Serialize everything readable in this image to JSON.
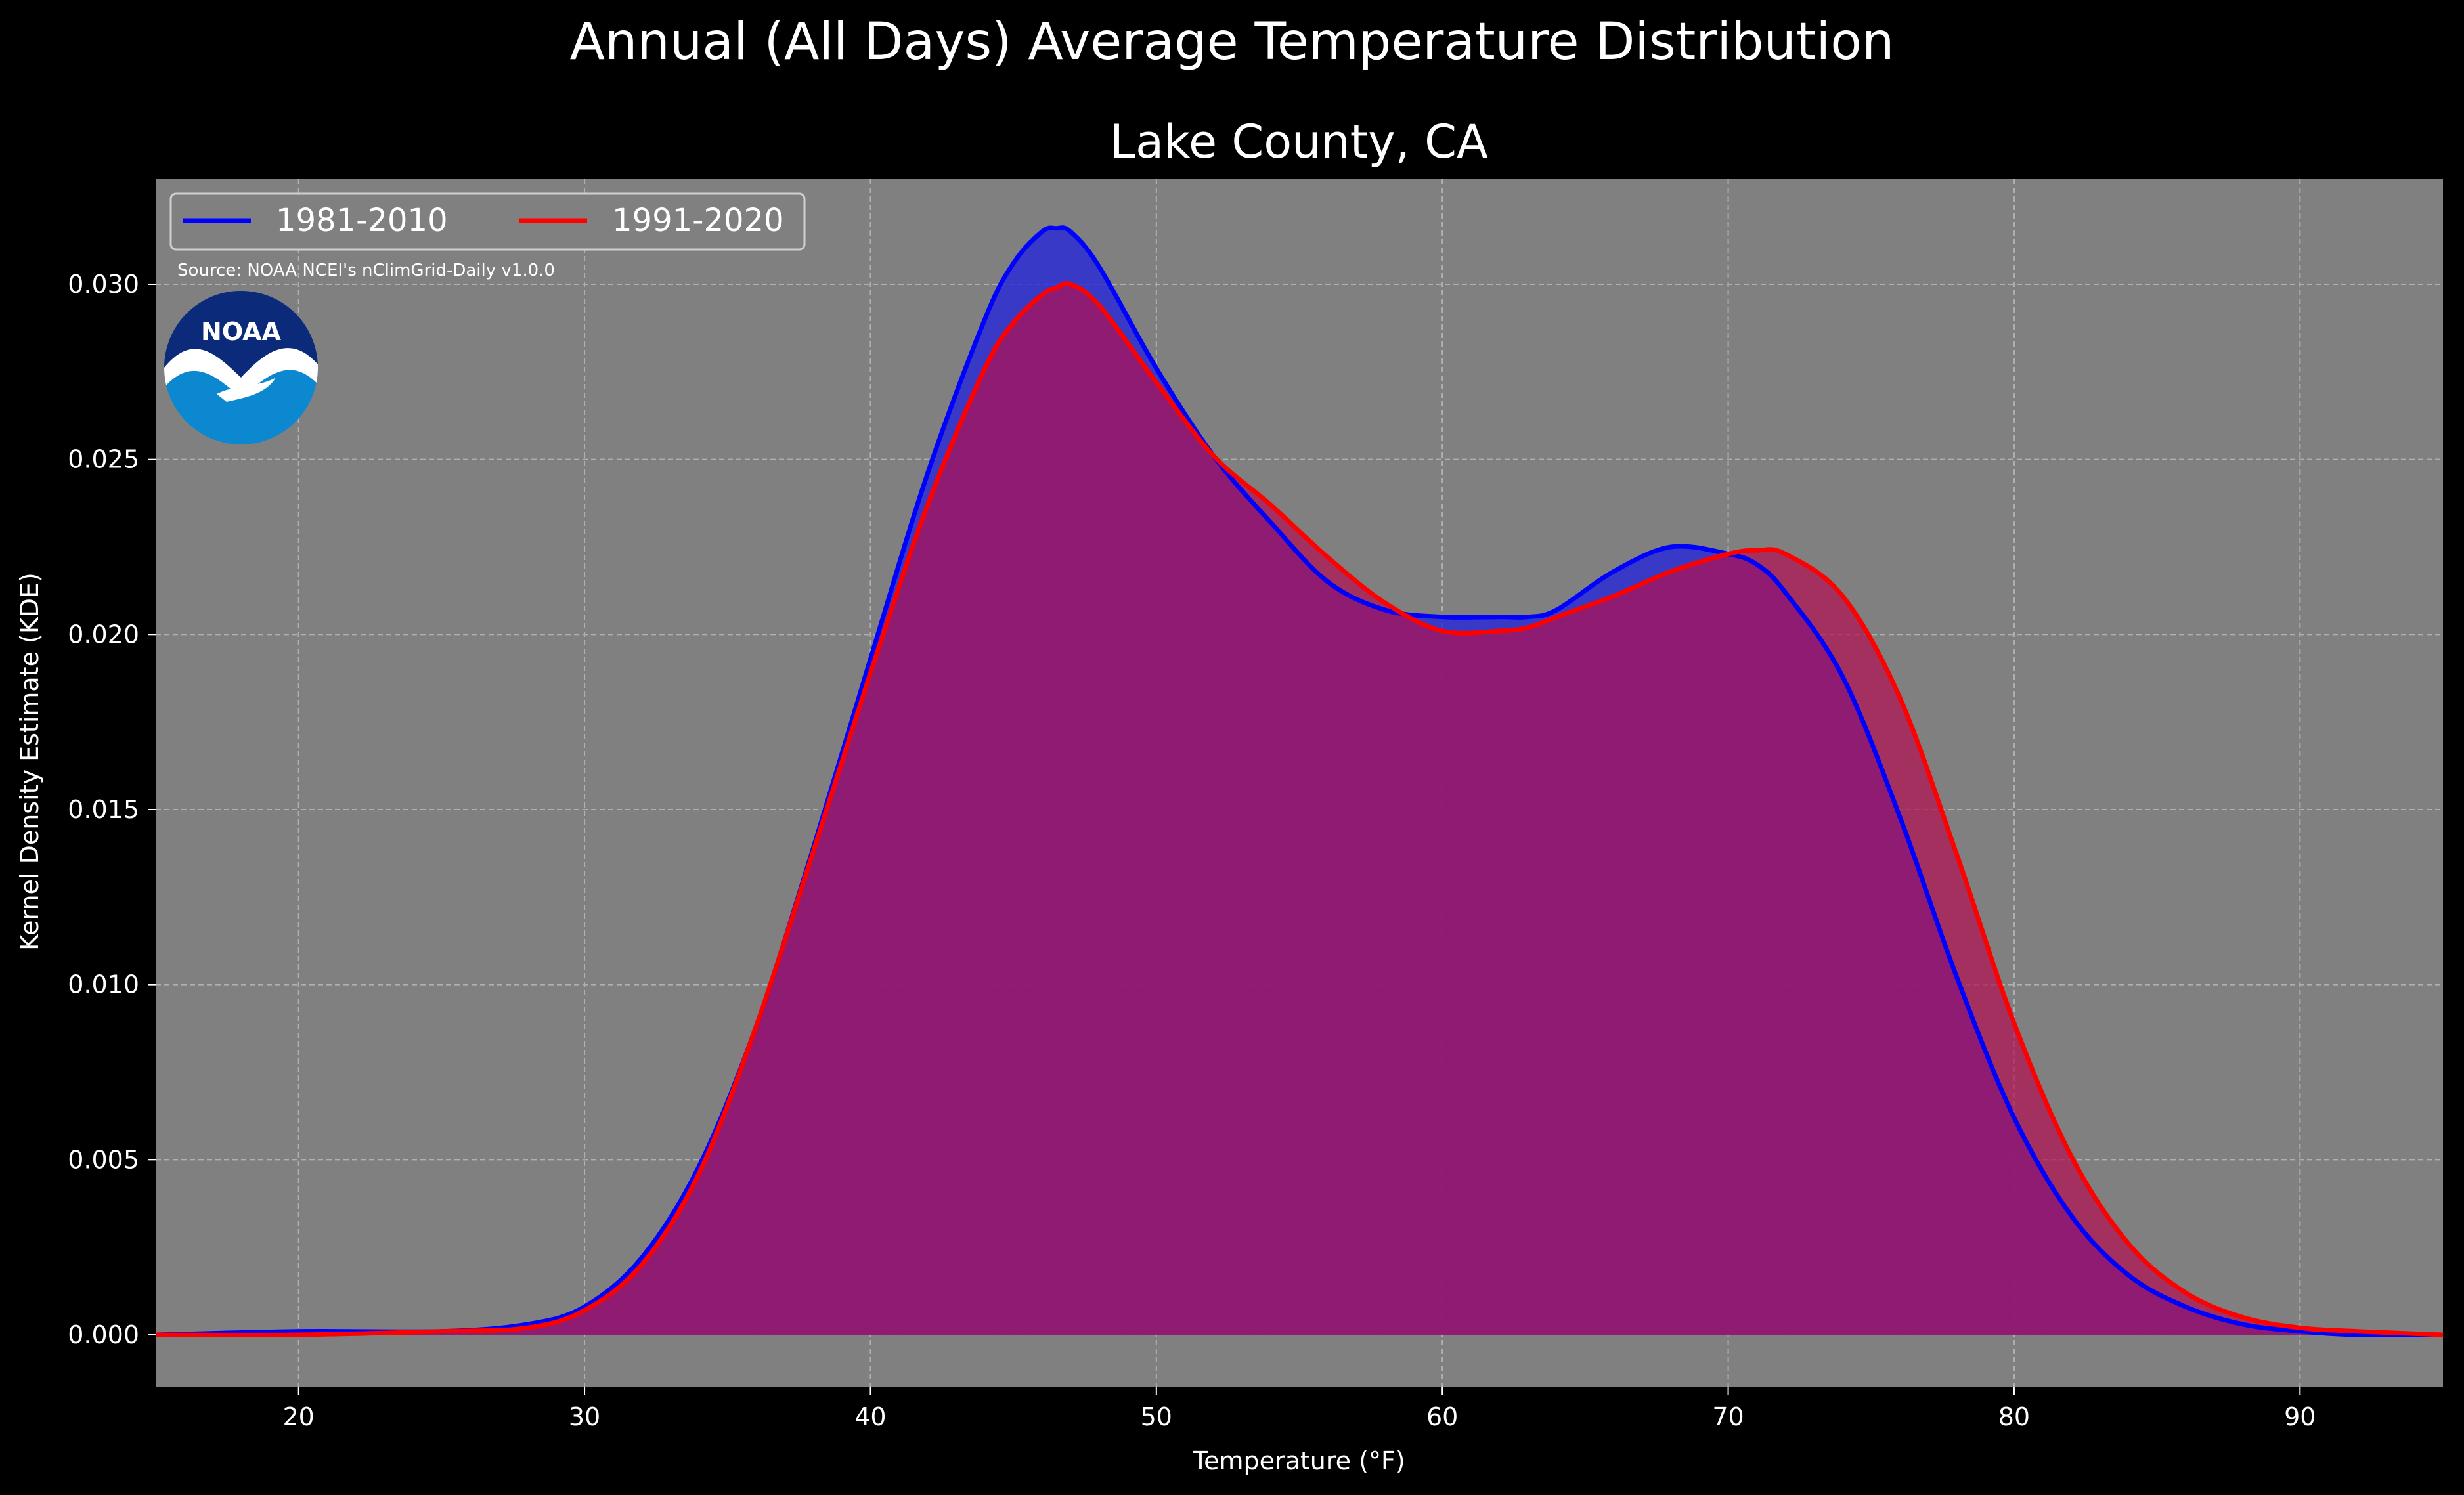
{
  "chart_data": {
    "type": "area",
    "suptitle": "Annual (All Days) Average Temperature Distribution",
    "title": "Lake County, CA",
    "xlabel": "Temperature (°F)",
    "ylabel": "Kernel Density Estimate (KDE)",
    "xlim": [
      15,
      95
    ],
    "ylim": [
      -0.0015,
      0.033
    ],
    "xticks": [
      "20",
      "30",
      "40",
      "50",
      "60",
      "70",
      "80",
      "90"
    ],
    "yticks": [
      "0.000",
      "0.005",
      "0.010",
      "0.015",
      "0.020",
      "0.025",
      "0.030"
    ],
    "grid": true,
    "legend_position": "top-left",
    "source_note": "Source: NOAA NCEI's nClimGrid-Daily v1.0.0",
    "logo_text": "NOAA",
    "x": [
      15,
      20,
      25,
      28,
      30,
      32,
      34,
      36,
      38,
      40,
      42,
      44,
      45,
      46,
      46.5,
      47,
      48,
      50,
      52,
      54,
      56,
      58,
      60,
      62,
      63,
      64,
      66,
      68,
      70,
      71,
      72,
      74,
      76,
      78,
      80,
      82,
      84,
      86,
      88,
      90,
      92,
      95
    ],
    "series": [
      {
        "name": "1981-2010",
        "color": "#0000ff",
        "fill": "#3333cc",
        "values": [
          0.0,
          0.0001,
          0.0001,
          0.0003,
          0.0008,
          0.0022,
          0.0048,
          0.0088,
          0.0139,
          0.0193,
          0.0246,
          0.029,
          0.0306,
          0.0315,
          0.0316,
          0.0315,
          0.0305,
          0.0276,
          0.0251,
          0.0232,
          0.0215,
          0.0207,
          0.0205,
          0.0205,
          0.0205,
          0.0207,
          0.0218,
          0.0225,
          0.0223,
          0.022,
          0.0212,
          0.0188,
          0.0148,
          0.0102,
          0.0062,
          0.0034,
          0.0017,
          0.0008,
          0.0003,
          0.0001,
          0.0,
          0.0
        ]
      },
      {
        "name": "1991-2020",
        "color": "#ff0000",
        "fill": "#b03a5a",
        "values": [
          0.0,
          0.0,
          0.0001,
          0.0002,
          0.0007,
          0.002,
          0.0046,
          0.0088,
          0.0138,
          0.0189,
          0.0237,
          0.0276,
          0.0289,
          0.0297,
          0.0299,
          0.03,
          0.0294,
          0.0272,
          0.0251,
          0.0237,
          0.0222,
          0.0209,
          0.0201,
          0.0201,
          0.0202,
          0.0205,
          0.0211,
          0.0218,
          0.0223,
          0.0224,
          0.0223,
          0.0211,
          0.0182,
          0.0137,
          0.0089,
          0.0051,
          0.0026,
          0.0012,
          0.0005,
          0.0002,
          0.0001,
          0.0
        ]
      }
    ]
  }
}
